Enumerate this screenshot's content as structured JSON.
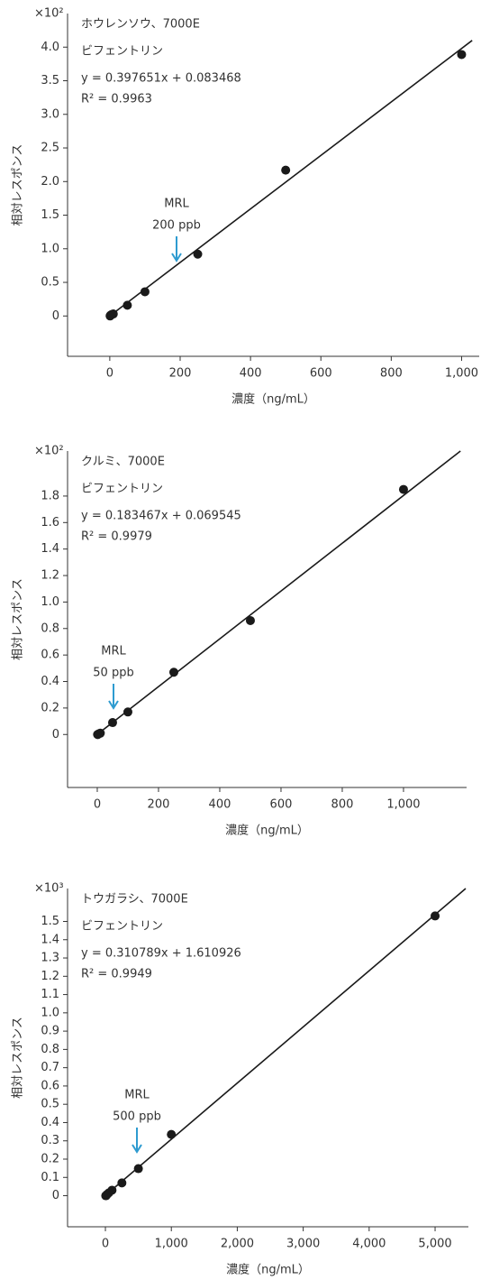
{
  "chart_data": [
    {
      "type": "scatter",
      "title": "ホウレンソウ、7000E",
      "subtitle": "ビフェントリン",
      "annotations": [
        "y = 0.397651x  + 0.083468",
        "R² = 0.9963"
      ],
      "multiplier": "×10²",
      "mrl_label": [
        "MRL",
        "200 ppb"
      ],
      "xlabel": "濃度（ng/mL）",
      "ylabel": "相対レスポンス",
      "x": [
        1,
        2,
        5,
        10,
        50,
        100,
        250,
        500,
        1000
      ],
      "values": [
        0,
        0.01,
        0.02,
        0.03,
        0.16,
        0.36,
        0.92,
        2.17,
        3.89
      ],
      "fit": {
        "x": [
          0,
          1030
        ],
        "values": [
          0.0008,
          4.1
        ]
      },
      "xlim": [
        -120,
        1050
      ],
      "ylim": [
        -0.6,
        4.5
      ],
      "xticks": [
        0,
        200,
        400,
        600,
        800,
        {
          "value": 1000,
          "label": "1,000"
        }
      ],
      "yticks": [
        0,
        0.5,
        {
          "value": 1,
          "label": "1.0"
        },
        1.5,
        {
          "value": 2,
          "label": "2.0"
        },
        2.5,
        {
          "value": 3,
          "label": "3.0"
        },
        3.5,
        {
          "value": 4,
          "label": "4.0"
        }
      ],
      "color": "#1a1a1a",
      "annotation_color": "#2e9bd0"
    },
    {
      "type": "scatter",
      "title": "クルミ、7000E",
      "subtitle": "ビフェントリン",
      "annotations": [
        "y = 0.183467x  + 0.069545",
        "R² = 0.9979"
      ],
      "multiplier": "×10²",
      "mrl_label": [
        "MRL",
        "50 ppb"
      ],
      "xlabel": "濃度（ng/mL）",
      "ylabel": "相対レスポンス",
      "x": [
        1,
        2,
        5,
        10,
        50,
        100,
        250,
        500,
        1000
      ],
      "values": [
        0,
        0,
        0.005,
        0.01,
        0.09,
        0.17,
        0.47,
        0.86,
        1.85
      ],
      "fit": {
        "x": [
          0,
          1186
        ],
        "values": [
          0.0007,
          2.14
        ]
      },
      "xlim": [
        -97,
        1206
      ],
      "ylim": [
        -0.4,
        2.14
      ],
      "xticks": [
        0,
        200,
        400,
        600,
        800,
        {
          "value": 1000,
          "label": "1,000"
        }
      ],
      "yticks": [
        0,
        0.2,
        0.4,
        0.6,
        0.8,
        {
          "value": 1,
          "label": "1.0"
        },
        1.2,
        1.4,
        1.6,
        1.8
      ],
      "color": "#1a1a1a",
      "annotation_color": "#2e9bd0"
    },
    {
      "type": "scatter",
      "title": "トウガラシ、7000E",
      "subtitle": "ビフェントリン",
      "annotations": [
        "y = 0.310789x  + 1.610926",
        "R² = 0.9949"
      ],
      "multiplier": "×10³",
      "mrl_label": [
        "MRL",
        "500 ppb"
      ],
      "xlabel": "濃度（ng/mL）",
      "ylabel": "相対レスポンス",
      "x": [
        5,
        10,
        25,
        50,
        100,
        250,
        500,
        1000,
        5000
      ],
      "values": [
        0,
        0,
        0.007,
        0.015,
        0.03,
        0.07,
        0.148,
        0.335,
        1.53
      ],
      "fit": {
        "x": [
          0,
          5464
        ],
        "values": [
          0.0016,
          1.68
        ]
      },
      "xlim": [
        -574,
        5505
      ],
      "ylim": [
        -0.17,
        1.68
      ],
      "xticks": [
        0,
        {
          "value": 1000,
          "label": "1,000"
        },
        {
          "value": 2000,
          "label": "2,000"
        },
        {
          "value": 3000,
          "label": "3,000"
        },
        {
          "value": 4000,
          "label": "4,000"
        },
        {
          "value": 5000,
          "label": "5,000"
        }
      ],
      "yticks": [
        0,
        0.1,
        0.2,
        0.3,
        0.4,
        0.5,
        0.6,
        0.7,
        0.8,
        0.9,
        {
          "value": 1,
          "label": "1.0"
        },
        1.1,
        1.2,
        1.3,
        1.4,
        1.5
      ],
      "color": "#1a1a1a",
      "annotation_color": "#2e9bd0"
    }
  ]
}
